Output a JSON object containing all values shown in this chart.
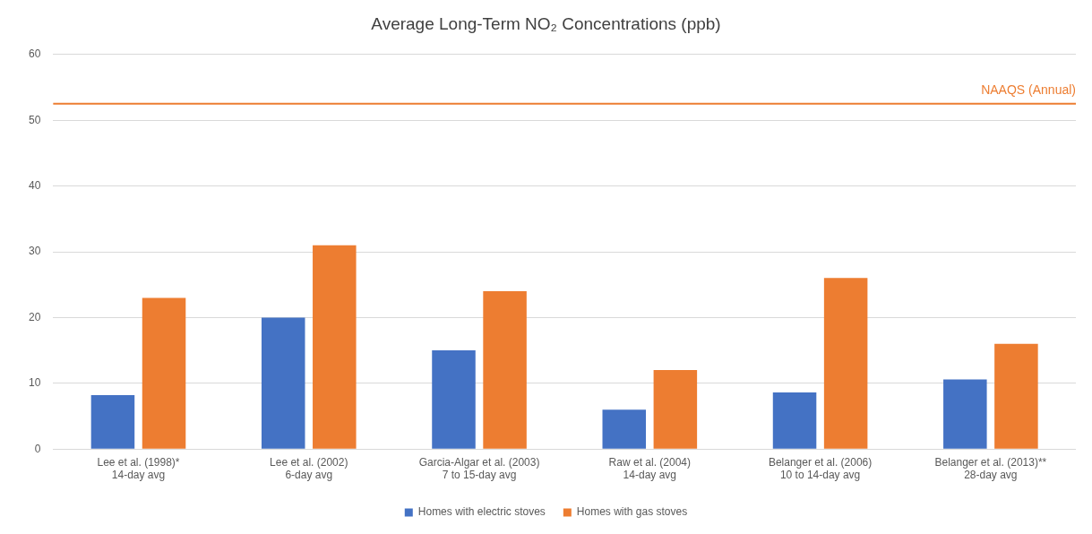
{
  "chart_data": {
    "type": "bar",
    "title": "Average Long-Term NO₂ Concentrations (ppb)",
    "categories": [
      "Lee et al. (1998)*\n14-day avg",
      "Lee et al. (2002)\n6-day avg",
      "Garcia-Algar et al. (2003)\n7 to 15-day avg",
      "Raw et al. (2004)\n14-day avg",
      "Belanger et al. (2006)\n10 to 14-day avg",
      "Belanger et al. (2013)**\n28-day avg"
    ],
    "series": [
      {
        "name": "Homes with electric stoves",
        "color": "#4472c4",
        "values": [
          8.2,
          20,
          15,
          6,
          8.6,
          10.6
        ]
      },
      {
        "name": "Homes with gas stoves",
        "color": "#ed7d31",
        "values": [
          23,
          31,
          24,
          12,
          26,
          16
        ]
      }
    ],
    "ylim": [
      0,
      60
    ],
    "yticks": [
      0,
      10,
      20,
      30,
      40,
      50,
      60
    ],
    "grid": "y",
    "legend": "bottom",
    "ref_lines": [
      {
        "axis": "y",
        "value": 52.5,
        "label": "NAAQS (Annual)",
        "color": "#ed7d31"
      }
    ]
  }
}
